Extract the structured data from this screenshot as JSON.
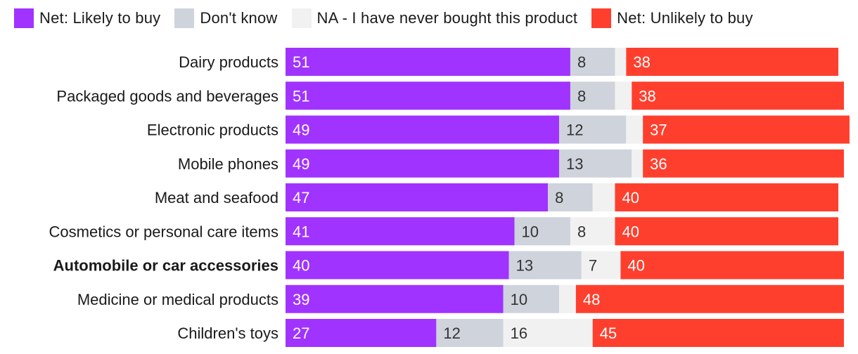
{
  "chart_data": {
    "type": "bar",
    "orientation": "horizontal",
    "stacked": true,
    "legend_position": "top-left",
    "categories": [
      "Dairy products",
      "Packaged goods and beverages",
      "Electronic products",
      "Mobile phones",
      "Meat and seafood",
      "Cosmetics or personal care items",
      "Automobile or car accessories",
      "Medicine or medical products",
      "Children's toys"
    ],
    "highlighted_category": "Automobile or car accessories",
    "series": [
      {
        "name": "Net: Likely to buy",
        "color": "#a033ff",
        "text_color": "#ffffff",
        "values": [
          51,
          51,
          49,
          49,
          47,
          41,
          40,
          39,
          27
        ],
        "labels": [
          "51",
          "51",
          "49",
          "49",
          "47",
          "41",
          "40",
          "39",
          "27"
        ]
      },
      {
        "name": "Don't know",
        "color": "#cfd3dc",
        "text_color": "#333333",
        "values": [
          8,
          8,
          12,
          13,
          8,
          10,
          13,
          10,
          12
        ],
        "labels": [
          "8",
          "8",
          "12",
          "13",
          "8",
          "10",
          "13",
          "10",
          "12"
        ]
      },
      {
        "name": "NA - I have never bought this product",
        "color": "#f1f1f1",
        "text_color": "#333333",
        "values": [
          2,
          3,
          3,
          2,
          4,
          8,
          7,
          3,
          16
        ],
        "labels": [
          "",
          "",
          "",
          "",
          "",
          "8",
          "7",
          "",
          "16"
        ]
      },
      {
        "name": "Net: Unlikely to buy",
        "color": "#ff3f2e",
        "text_color": "#ffffff",
        "values": [
          38,
          38,
          37,
          36,
          40,
          40,
          40,
          48,
          45
        ],
        "labels": [
          "38",
          "38",
          "37",
          "36",
          "40",
          "40",
          "40",
          "48",
          "45"
        ]
      }
    ],
    "xlim": [
      0,
      100
    ]
  }
}
